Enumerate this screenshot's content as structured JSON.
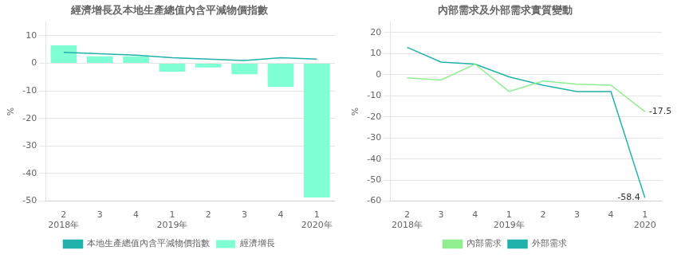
{
  "chart_data": [
    {
      "type": "bar",
      "title": "經濟增長及本地生產總值內含平減物價指數",
      "ylabel": "%",
      "categories": [
        "2",
        "3",
        "4",
        "1",
        "2",
        "3",
        "4",
        "1"
      ],
      "group_labels": [
        {
          "text": "2018年",
          "index": 0
        },
        {
          "text": "2019年",
          "index": 3
        },
        {
          "text": "2020年",
          "index": 7
        }
      ],
      "series": [
        {
          "name": "經濟增長",
          "type": "bar",
          "color": "#7fffd4",
          "values": [
            6.5,
            2.5,
            2.5,
            -3.0,
            -1.5,
            -4.0,
            -8.5,
            -48.7
          ]
        },
        {
          "name": "本地生產總值內含平減物價指數",
          "type": "line",
          "color": "#20b2aa",
          "values": [
            4.0,
            3.5,
            3.0,
            2.0,
            1.5,
            1.0,
            2.0,
            1.5
          ]
        }
      ],
      "ylim": [
        -50,
        15
      ],
      "yticks": [
        -50,
        -40,
        -30,
        -20,
        -10,
        0,
        10
      ],
      "grid": true,
      "legend": "bottom"
    },
    {
      "type": "line",
      "title": "內部需求及外部需求實質變動",
      "ylabel": "%",
      "categories": [
        "2",
        "3",
        "4",
        "1",
        "2",
        "3",
        "4",
        "1"
      ],
      "group_labels": [
        {
          "text": "2018年",
          "index": 0
        },
        {
          "text": "2019年",
          "index": 3
        },
        {
          "text": "2020",
          "index": 7
        }
      ],
      "series": [
        {
          "name": "內部需求",
          "type": "line",
          "color": "#90ee90",
          "values": [
            -1.5,
            -2.5,
            5.0,
            -8.0,
            -3.0,
            -4.5,
            -5.0,
            -17.5
          ]
        },
        {
          "name": "外部需求",
          "type": "line",
          "color": "#20b2aa",
          "values": [
            13.0,
            6.0,
            5.0,
            -1.0,
            -5.0,
            -8.0,
            -8.0,
            -58.4
          ]
        }
      ],
      "annotations": [
        {
          "text": "-17.5",
          "index": 7,
          "y": -17.5
        },
        {
          "text": "-58.4",
          "index": 7,
          "y": -58.4
        }
      ],
      "ylim": [
        -60,
        25
      ],
      "yticks": [
        -60,
        -50,
        -40,
        -30,
        -20,
        -10,
        0,
        10,
        20
      ],
      "grid": true,
      "legend": "bottom"
    }
  ]
}
